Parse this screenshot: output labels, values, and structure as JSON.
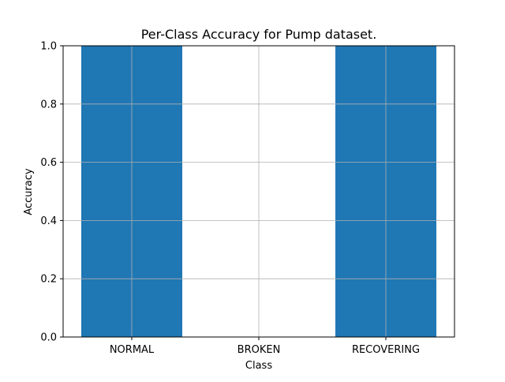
{
  "chart_data": {
    "type": "bar",
    "title": "Per-Class Accuracy for Pump dataset.",
    "xlabel": "Class",
    "ylabel": "Accuracy",
    "categories": [
      "NORMAL",
      "BROKEN",
      "RECOVERING"
    ],
    "values": [
      1.0,
      0.0,
      1.0
    ],
    "ylim": [
      0,
      1
    ],
    "yticks": [
      "0.0",
      "0.2",
      "0.4",
      "0.6",
      "0.8",
      "1.0"
    ],
    "grid": true,
    "bar_color": "#1f77b4"
  }
}
